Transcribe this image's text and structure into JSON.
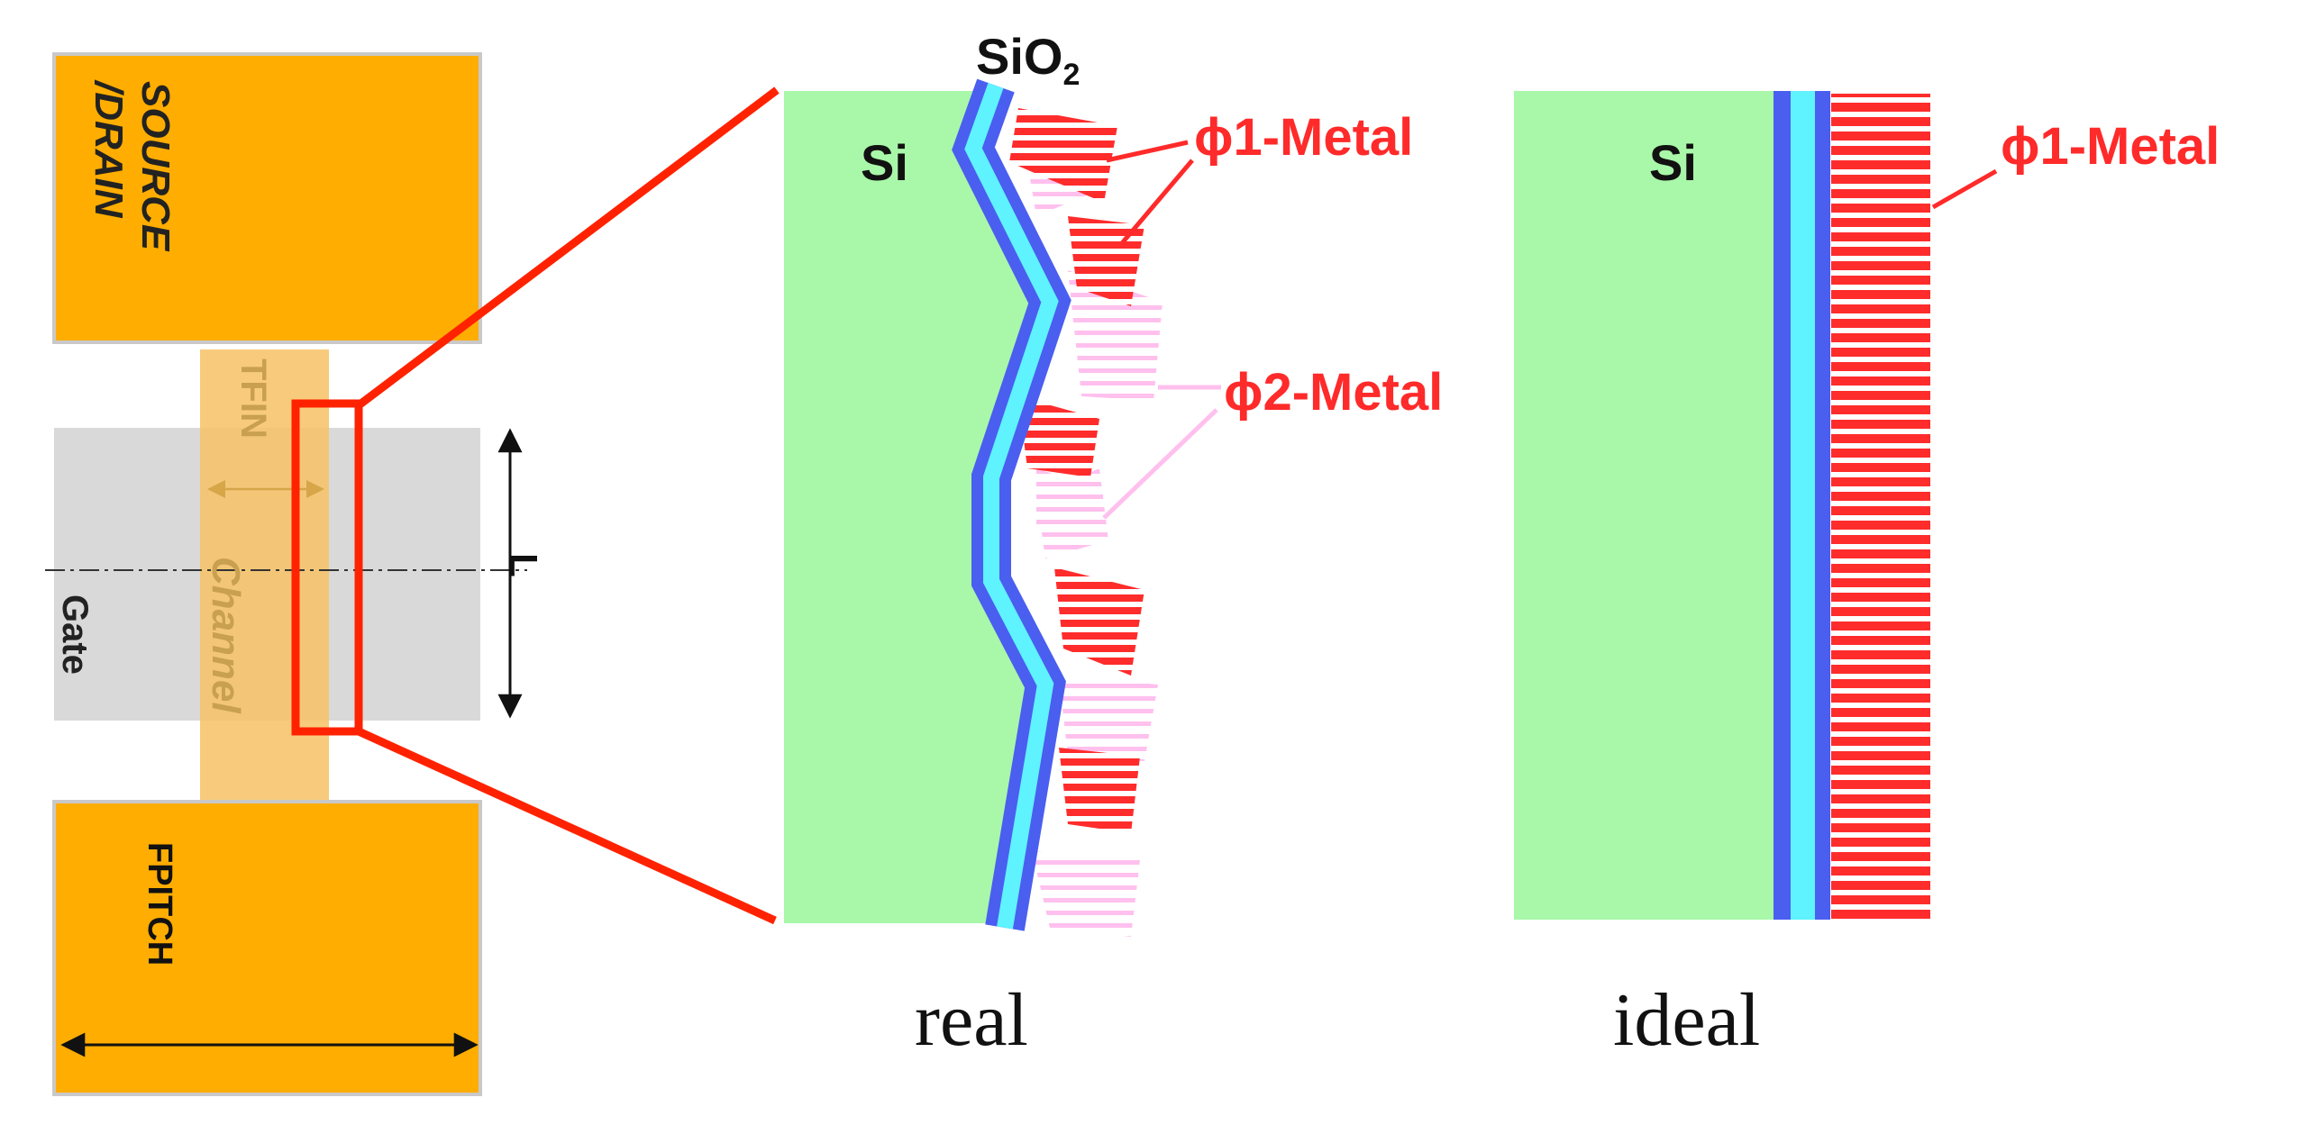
{
  "device": {
    "source_drain_label": [
      "SOURCE",
      "/DRAIN"
    ],
    "tfin_label": "TFIN",
    "channel_label": "Channel",
    "gate_label": "Gate",
    "length_label": "L",
    "fpitch_label": "FPITCH"
  },
  "real_panel": {
    "si_label": "Si",
    "sio2_label": "SiO",
    "sio2_subscript": "2",
    "metal1_label": "ϕ1-Metal",
    "metal2_label": "ϕ2-Metal",
    "caption": "real"
  },
  "ideal_panel": {
    "si_label": "Si",
    "metal1_label": "ϕ1-Metal",
    "caption": "ideal"
  },
  "colors": {
    "source_drain": "#ffad00",
    "gate": "#d9d9d9",
    "fin": "#f7c265",
    "fin_text": "#c8a050",
    "silicon": "#a9f7a9",
    "oxide_edge": "#4a5ef0",
    "oxide_core": "#5ff2ff",
    "metal1": "#ff2c2c",
    "metal2": "#ffc0ee",
    "highlight": "#ff2200",
    "label_red": "#ff2a2a"
  }
}
